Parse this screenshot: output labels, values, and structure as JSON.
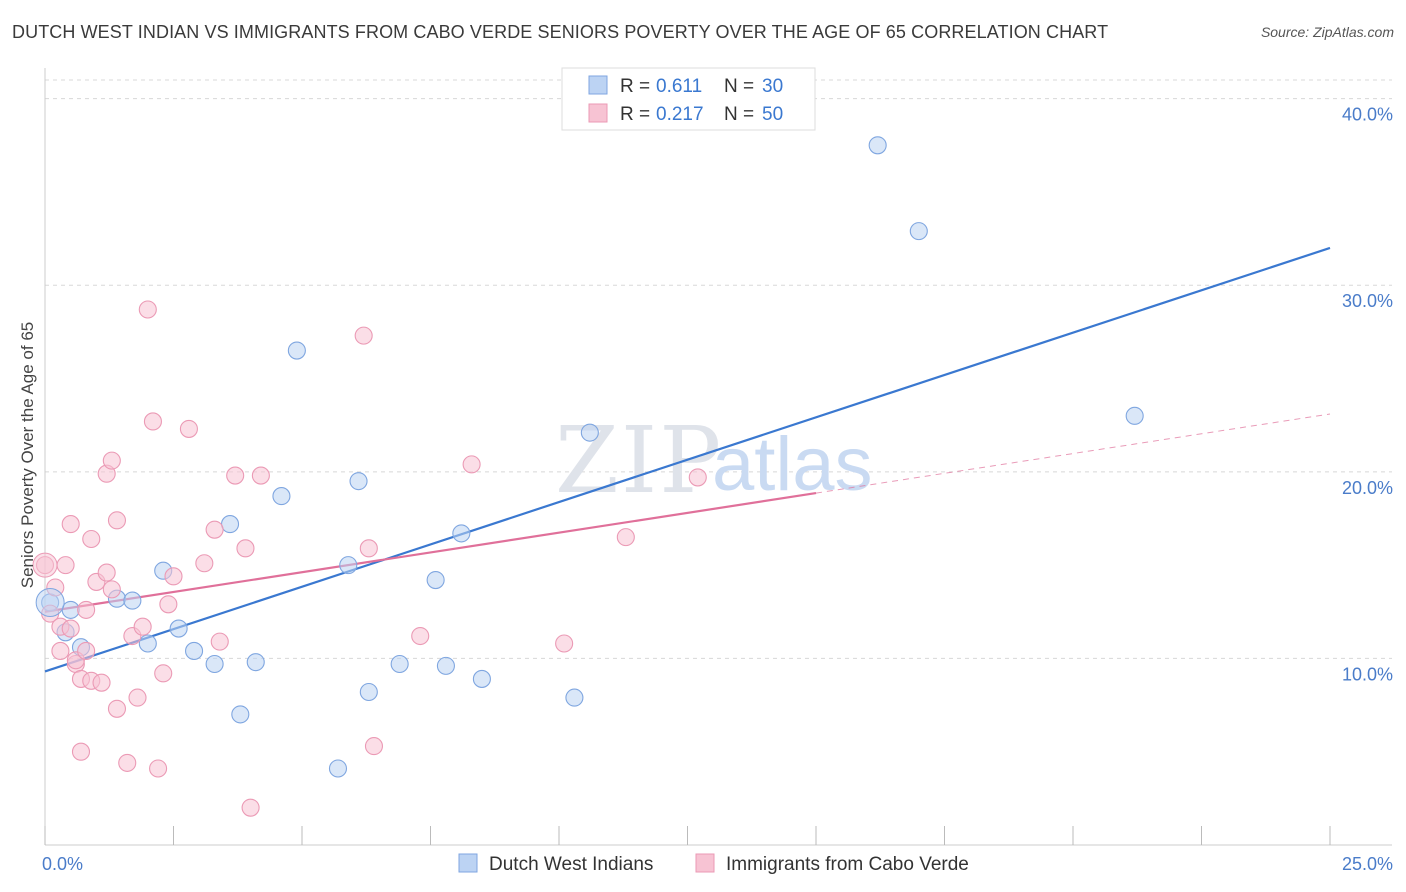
{
  "title": "DUTCH WEST INDIAN VS IMMIGRANTS FROM CABO VERDE SENIORS POVERTY OVER THE AGE OF 65 CORRELATION CHART",
  "source": "Source: ZipAtlas.com",
  "watermark": {
    "zip": "ZIP",
    "atlas": "atlas"
  },
  "colors": {
    "blue": "#3a78d0",
    "blue_fill": "#bcd3f3",
    "pink": "#e0709a",
    "pink_fill": "#f7c3d3",
    "grid": "#d8d8d8",
    "tick_text": "#4a7cc9"
  },
  "legend": {
    "r_label": "R =",
    "n_label": "N =",
    "rows": [
      {
        "series": "Dutch West Indians",
        "r": "0.611",
        "n": "30"
      },
      {
        "series": "Immigrants from Cabo Verde",
        "r": "0.217",
        "n": "50"
      }
    ]
  },
  "chart_data": {
    "type": "scatter",
    "title": "DUTCH WEST INDIAN VS IMMIGRANTS FROM CABO VERDE SENIORS POVERTY OVER THE AGE OF 65 CORRELATION CHART",
    "xlabel": "",
    "ylabel": "Seniors Poverty Over the Age of 65",
    "xlim": [
      0,
      25
    ],
    "ylim": [
      0,
      41
    ],
    "x_tick_labels": [
      {
        "value": 0,
        "label": "0.0%"
      },
      {
        "value": 25,
        "label": "25.0%"
      }
    ],
    "y_tick_labels": [
      {
        "value": 10,
        "label": "10.0%"
      },
      {
        "value": 20,
        "label": "20.0%"
      },
      {
        "value": 30,
        "label": "30.0%"
      },
      {
        "value": 40,
        "label": "40.0%"
      }
    ],
    "grid": true,
    "legend_position": "top-center",
    "series": [
      {
        "name": "Dutch West Indians",
        "r": 0.611,
        "n": 30,
        "trend": {
          "x0": 0,
          "y0": 9.3,
          "x1": 25,
          "y1": 32.0,
          "solid_until": 25
        },
        "points": [
          [
            0.1,
            13.0
          ],
          [
            0.4,
            11.4
          ],
          [
            0.5,
            12.6
          ],
          [
            0.7,
            10.6
          ],
          [
            1.4,
            13.2
          ],
          [
            1.7,
            13.1
          ],
          [
            2.0,
            10.8
          ],
          [
            2.3,
            14.7
          ],
          [
            2.6,
            11.6
          ],
          [
            2.9,
            10.4
          ],
          [
            3.3,
            9.7
          ],
          [
            3.6,
            17.2
          ],
          [
            3.8,
            7.0
          ],
          [
            4.1,
            9.8
          ],
          [
            4.6,
            18.7
          ],
          [
            4.9,
            26.5
          ],
          [
            5.7,
            4.1
          ],
          [
            5.9,
            15.0
          ],
          [
            6.1,
            19.5
          ],
          [
            6.3,
            8.2
          ],
          [
            6.9,
            9.7
          ],
          [
            7.6,
            14.2
          ],
          [
            7.8,
            9.6
          ],
          [
            8.1,
            16.7
          ],
          [
            8.5,
            8.9
          ],
          [
            10.3,
            7.9
          ],
          [
            10.6,
            22.1
          ],
          [
            16.2,
            37.5
          ],
          [
            17.0,
            32.9
          ],
          [
            21.2,
            23.0
          ]
        ]
      },
      {
        "name": "Immigrants from Cabo Verde",
        "r": 0.217,
        "n": 50,
        "trend": {
          "x0": 0,
          "y0": 12.5,
          "x1": 25,
          "y1": 23.1,
          "solid_until": 15
        },
        "points": [
          [
            0.0,
            15.0
          ],
          [
            0.1,
            12.4
          ],
          [
            0.2,
            13.8
          ],
          [
            0.3,
            11.7
          ],
          [
            0.3,
            10.4
          ],
          [
            0.4,
            15.0
          ],
          [
            0.5,
            17.2
          ],
          [
            0.5,
            11.6
          ],
          [
            0.6,
            9.7
          ],
          [
            0.6,
            9.9
          ],
          [
            0.7,
            8.9
          ],
          [
            0.7,
            5.0
          ],
          [
            0.8,
            10.4
          ],
          [
            0.8,
            12.6
          ],
          [
            0.9,
            8.8
          ],
          [
            0.9,
            16.4
          ],
          [
            1.0,
            14.1
          ],
          [
            1.1,
            8.7
          ],
          [
            1.2,
            19.9
          ],
          [
            1.2,
            14.6
          ],
          [
            1.3,
            13.7
          ],
          [
            1.3,
            20.6
          ],
          [
            1.4,
            7.3
          ],
          [
            1.4,
            17.4
          ],
          [
            1.6,
            4.4
          ],
          [
            1.7,
            11.2
          ],
          [
            1.8,
            7.9
          ],
          [
            1.9,
            11.7
          ],
          [
            2.0,
            28.7
          ],
          [
            2.1,
            22.7
          ],
          [
            2.2,
            4.1
          ],
          [
            2.3,
            9.2
          ],
          [
            2.4,
            12.9
          ],
          [
            2.5,
            14.4
          ],
          [
            2.8,
            22.3
          ],
          [
            3.1,
            15.1
          ],
          [
            3.3,
            16.9
          ],
          [
            3.4,
            10.9
          ],
          [
            3.7,
            19.8
          ],
          [
            3.9,
            15.9
          ],
          [
            4.0,
            2.0
          ],
          [
            4.2,
            19.8
          ],
          [
            6.2,
            27.3
          ],
          [
            6.3,
            15.9
          ],
          [
            6.4,
            5.3
          ],
          [
            7.3,
            11.2
          ],
          [
            8.3,
            20.4
          ],
          [
            10.1,
            10.8
          ],
          [
            11.3,
            16.5
          ],
          [
            12.7,
            19.7
          ]
        ]
      }
    ]
  }
}
